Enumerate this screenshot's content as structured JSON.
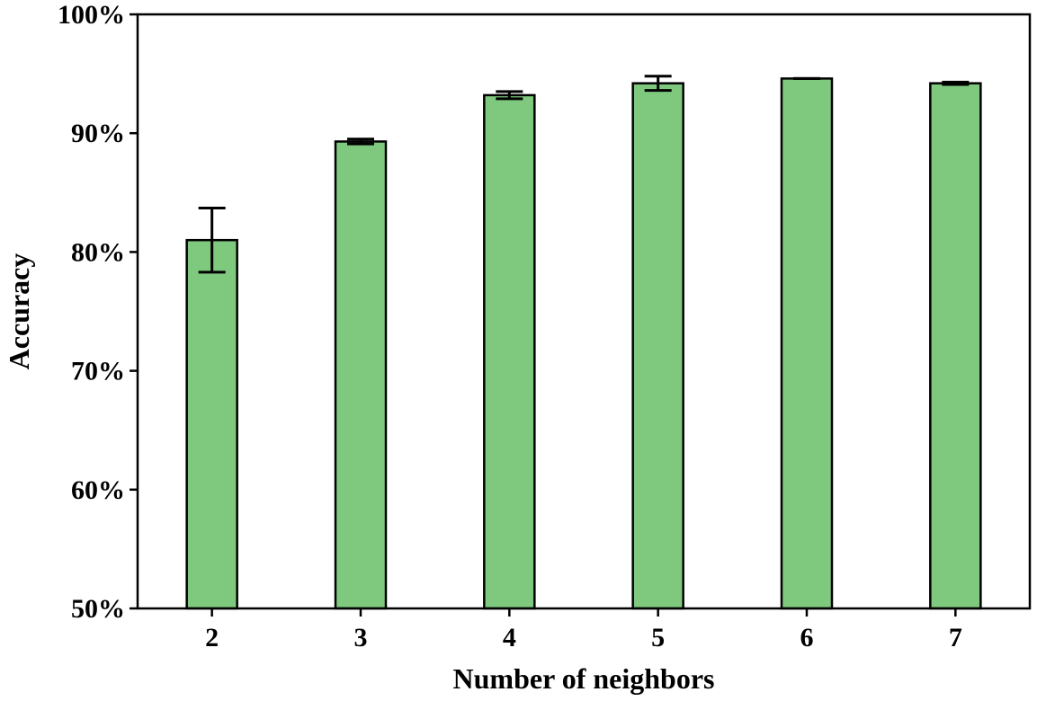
{
  "chart_data": {
    "type": "bar",
    "title": "",
    "xlabel": "Number of neighbors",
    "ylabel": "Accuracy",
    "categories": [
      "2",
      "3",
      "4",
      "5",
      "6",
      "7"
    ],
    "values": [
      81.0,
      89.3,
      93.2,
      94.2,
      94.6,
      94.2
    ],
    "errors": [
      2.7,
      0.2,
      0.3,
      0.6,
      0.0,
      0.1
    ],
    "ylim": [
      50,
      100
    ],
    "yticks": [
      50,
      60,
      70,
      80,
      90,
      100
    ],
    "ytick_labels": [
      "50%",
      "60%",
      "70%",
      "80%",
      "90%",
      "100%"
    ],
    "grid": false,
    "colors": {
      "bar_fill": "#7fc97f",
      "bar_edge": "#000000",
      "error_bar": "#000000"
    }
  }
}
